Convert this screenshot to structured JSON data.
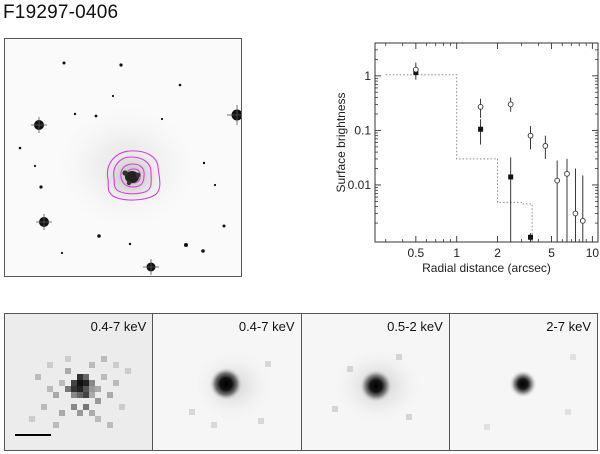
{
  "title": "F19297-0406",
  "chart_data": {
    "type": "scatter",
    "xlabel": "Radial distance (arcsec)",
    "ylabel": "Surface brightness",
    "xscale": "log",
    "yscale": "log",
    "xlim": [
      0.25,
      11
    ],
    "ylim": [
      0.0009,
      4
    ],
    "xticks": [
      {
        "v": 0.5,
        "label": "0.5"
      },
      {
        "v": 1,
        "label": "1"
      },
      {
        "v": 2,
        "label": "2"
      },
      {
        "v": 5,
        "label": "5"
      },
      {
        "v": 10,
        "label": "10"
      }
    ],
    "yticks": [
      {
        "v": 1,
        "label": "1"
      },
      {
        "v": 0.1,
        "label": "0.1"
      },
      {
        "v": 0.01,
        "label": "0.01"
      }
    ],
    "series": [
      {
        "marker": "filled-square",
        "points": [
          {
            "x": 0.5,
            "y": 1.15,
            "lo": 0.85,
            "hi": 1.5
          },
          {
            "x": 1.5,
            "y": 0.105,
            "lo": 0.055,
            "hi": 0.16
          },
          {
            "x": 2.5,
            "y": 0.014,
            "lo": 0.0009,
            "hi": 0.032
          },
          {
            "x": 3.5,
            "y": 0.0011,
            "lo": 0.0009,
            "hi": 0.0013
          }
        ]
      },
      {
        "marker": "open-circle",
        "points": [
          {
            "x": 0.5,
            "y": 1.3,
            "lo": 1.0,
            "hi": 1.75
          },
          {
            "x": 1.5,
            "y": 0.27,
            "lo": 0.17,
            "hi": 0.38
          },
          {
            "x": 2.5,
            "y": 0.3,
            "lo": 0.22,
            "hi": 0.4
          },
          {
            "x": 3.5,
            "y": 0.08,
            "lo": 0.045,
            "hi": 0.12
          },
          {
            "x": 4.5,
            "y": 0.052,
            "lo": 0.03,
            "hi": 0.08
          },
          {
            "x": 5.5,
            "y": 0.012,
            "lo": 0.0009,
            "hi": 0.028
          },
          {
            "x": 6.5,
            "y": 0.016,
            "lo": 0.0009,
            "hi": 0.03
          },
          {
            "x": 7.5,
            "y": 0.003,
            "lo": 0.0009,
            "hi": 0.02
          },
          {
            "x": 8.5,
            "y": 0.0022,
            "lo": 0.0009,
            "hi": 0.015
          }
        ]
      },
      {
        "marker": "dotted-step",
        "steps": [
          {
            "x0": 0.3,
            "x1": 1.0,
            "y": 1.05
          },
          {
            "x0": 1.0,
            "x1": 2.0,
            "y": 0.03
          },
          {
            "x0": 2.0,
            "x1": 3.0,
            "y": 0.0048
          },
          {
            "x0": 3.0,
            "x1": 3.6,
            "y": 0.0045
          }
        ]
      }
    ]
  },
  "panels": [
    {
      "label": "0.4-7 keV"
    },
    {
      "label": "0.4-7 keV"
    },
    {
      "label": "0.5-2 keV"
    },
    {
      "label": "2-7 keV"
    }
  ],
  "colors": {
    "contour": "#d63fd6",
    "marker": "#111111",
    "step": "#888888"
  }
}
